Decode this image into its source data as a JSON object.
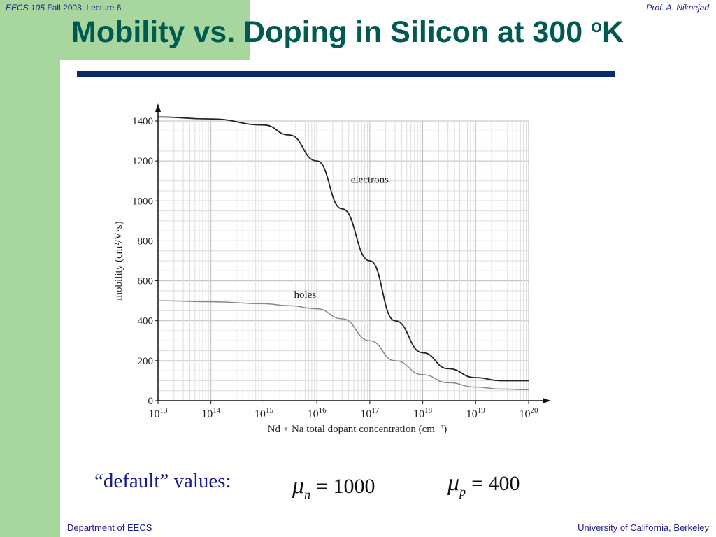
{
  "header": {
    "course": "EECS 105",
    "term": "Fall 2003, Lecture 6",
    "author": "Prof. A. Niknejad"
  },
  "title": {
    "main": "Mobility vs. Doping in Silicon at 300 ",
    "degree": "o",
    "unit": "K"
  },
  "footer": {
    "left": "Department of EECS",
    "right": "University of California, Berkeley"
  },
  "defaults": {
    "label": "“default” values:",
    "mu_n": {
      "symbol": "μ",
      "sub": "n",
      "value": "= 1000"
    },
    "mu_p": {
      "symbol": "μ",
      "sub": "p",
      "value": "= 400"
    }
  },
  "chart_data": {
    "type": "line",
    "x_scale": "log",
    "xlim": [
      10000000000000.0,
      1e+20
    ],
    "ylim": [
      0,
      1400
    ],
    "y_ticks": [
      0,
      200,
      400,
      600,
      800,
      1000,
      1200,
      1400
    ],
    "x_tick_exponents": [
      13,
      14,
      15,
      16,
      17,
      18,
      19,
      20
    ],
    "x_tick_base": "10",
    "ylabel": "mobility (cm²/V·s)",
    "xlabel": "Nd + Na total dopant concentration (cm⁻³)",
    "grid": true,
    "series": [
      {
        "name": "electrons",
        "color": "#222222",
        "x": [
          10000000000000.0,
          100000000000000.0,
          1000000000000000.0,
          3000000000000000.0,
          1e+16,
          3e+16,
          1e+17,
          3e+17,
          1e+18,
          3e+18,
          1e+19,
          3e+19,
          1e+20
        ],
        "y": [
          1420,
          1410,
          1380,
          1330,
          1200,
          960,
          700,
          400,
          240,
          160,
          115,
          100,
          100
        ]
      },
      {
        "name": "holes",
        "color": "#888888",
        "x": [
          10000000000000.0,
          100000000000000.0,
          1000000000000000.0,
          3000000000000000.0,
          1e+16,
          3e+16,
          1e+17,
          3e+17,
          1e+18,
          3e+18,
          1e+19,
          3e+19,
          1e+20
        ],
        "y": [
          500,
          495,
          485,
          475,
          460,
          410,
          300,
          200,
          130,
          90,
          68,
          58,
          55
        ]
      }
    ]
  }
}
